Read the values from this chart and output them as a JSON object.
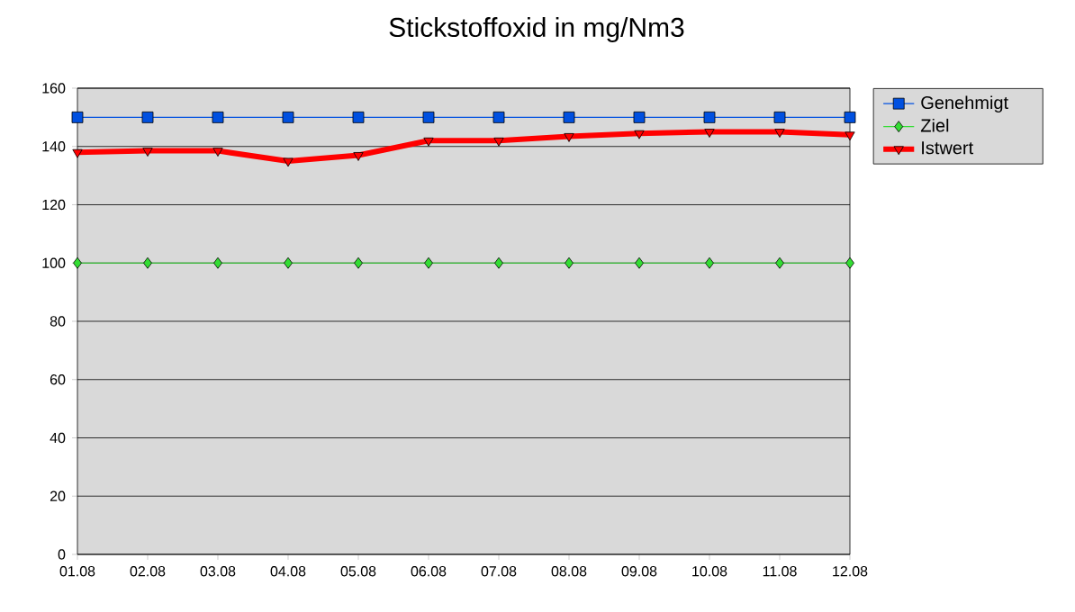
{
  "chart_data": {
    "type": "line",
    "title": "Stickstoffoxid in mg/Nm3",
    "categories": [
      "01.08",
      "02.08",
      "03.08",
      "04.08",
      "05.08",
      "06.08",
      "07.08",
      "08.08",
      "09.08",
      "10.08",
      "11.08",
      "12.08"
    ],
    "series": [
      {
        "name": "Genehmigt",
        "color": "#0050e0",
        "marker": "square",
        "values": [
          150,
          150,
          150,
          150,
          150,
          150,
          150,
          150,
          150,
          150,
          150,
          150
        ]
      },
      {
        "name": "Ziel",
        "color": "#33dd33",
        "marker": "diamond",
        "values": [
          100,
          100,
          100,
          100,
          100,
          100,
          100,
          100,
          100,
          100,
          100,
          100
        ]
      },
      {
        "name": "Istwert",
        "color": "#ff0000",
        "marker": "triangle",
        "values": [
          138,
          138.5,
          138.5,
          135,
          137,
          142,
          142,
          143.5,
          144.5,
          145,
          145,
          144
        ]
      }
    ],
    "ylim": [
      0,
      160
    ],
    "yticks": [
      0,
      20,
      40,
      60,
      80,
      100,
      120,
      140,
      160
    ],
    "grid": "y",
    "legend": "top right"
  }
}
